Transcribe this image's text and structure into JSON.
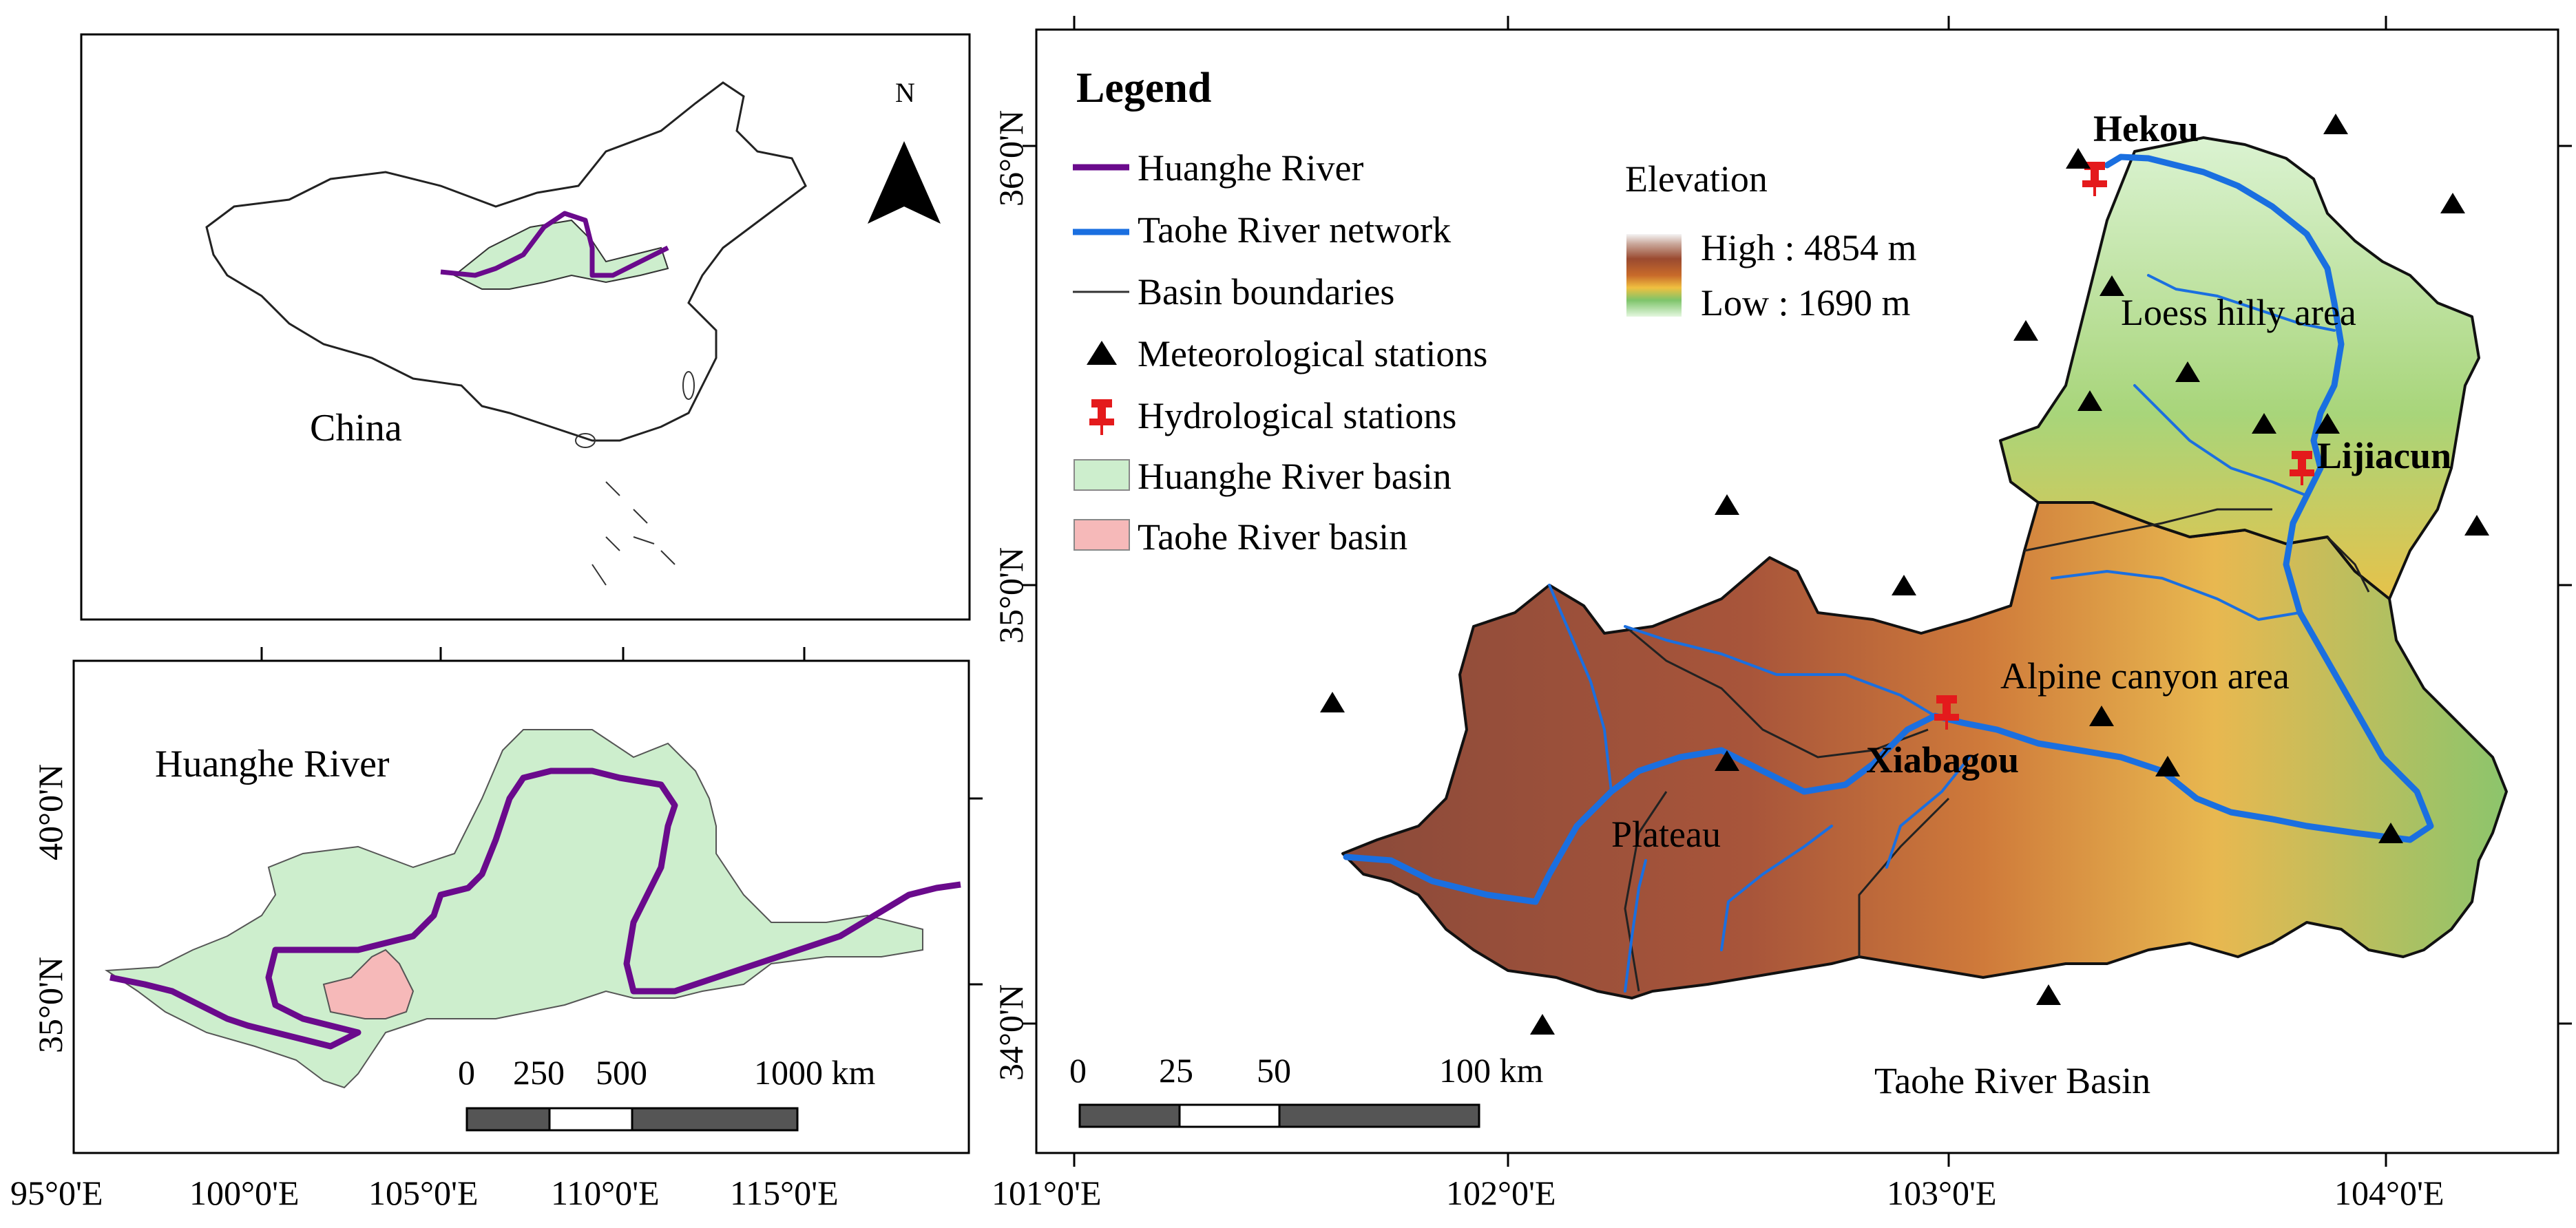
{
  "colors": {
    "huanghe_river": "#6a0a8c",
    "taohe_network": "#1a6fe0",
    "huanghe_basin": "#cdeecd",
    "taohe_basin": "#f6b9b9",
    "meteo_station": "#000000",
    "hydro_station": "#e41a1c",
    "elevation_high": "#8a3a22",
    "elevation_low": "#d9f4d4"
  },
  "inset_china": {
    "label": "China",
    "north_label": "N",
    "icons": [
      "north-arrow-icon"
    ]
  },
  "inset_huanghe": {
    "label": "Huanghe River",
    "lat_labels": [
      "35°0'N",
      "40°0'N"
    ],
    "lon_labels": [
      "95°0'E",
      "100°0'E",
      "105°0'E",
      "110°0'E",
      "115°0'E"
    ],
    "scale_bar": {
      "ticks": [
        "0",
        "250",
        "500",
        "1000 km"
      ]
    }
  },
  "main_map": {
    "title": "Taohe River Basin",
    "lat_labels": [
      "34°0'N",
      "35°0'N",
      "36°0'N"
    ],
    "lon_labels": [
      "101°0'E",
      "102°0'E",
      "103°0'E",
      "104°0'E"
    ],
    "scale_bar": {
      "ticks": [
        "0",
        "25",
        "50",
        "100 km"
      ]
    },
    "legend": {
      "title": "Legend",
      "items": [
        {
          "label": "Huanghe River",
          "icon": "purple-line"
        },
        {
          "label": "Taohe River network",
          "icon": "blue-line"
        },
        {
          "label": "Basin boundaries",
          "icon": "thin-line"
        },
        {
          "label": "Meteorological stations",
          "icon": "triangle-icon"
        },
        {
          "label": "Hydrological stations",
          "icon": "pin-icon"
        },
        {
          "label": "Huanghe River basin",
          "icon": "green-patch"
        },
        {
          "label": "Taohe River basin",
          "icon": "pink-patch"
        }
      ]
    },
    "elevation": {
      "title": "Elevation",
      "high_label": "High : 4854 m",
      "low_label": "Low : 1690 m"
    },
    "region_labels": [
      "Loess hilly area",
      "Alpine canyon area",
      "Plateau"
    ],
    "hydro_stations": [
      "Hekou",
      "Lijiacun",
      "Xiabagou"
    ]
  }
}
